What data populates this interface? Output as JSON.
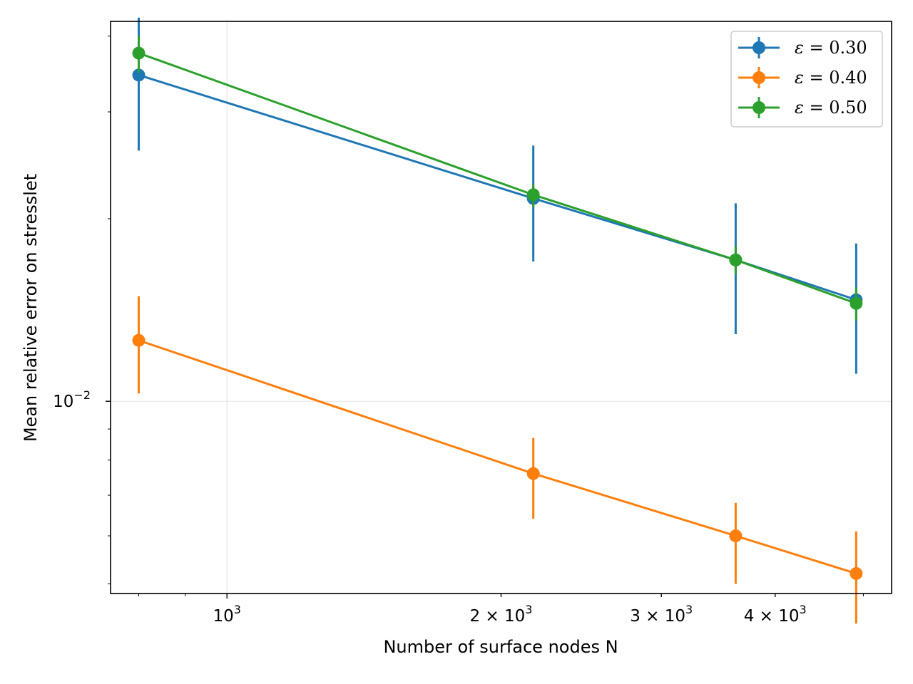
{
  "chart_data": {
    "type": "line",
    "title": "",
    "xlabel": "Number of surface nodes N",
    "ylabel": "Mean relative error on stresslet",
    "xscale": "log",
    "yscale": "log",
    "xlim": [
      745,
      5370
    ],
    "ylim": [
      0.00482,
      0.0423
    ],
    "x": [
      800,
      2170,
      3620,
      4910
    ],
    "xticks": [
      {
        "value": 1000,
        "base": "10",
        "exp": "3"
      },
      {
        "value": 2000,
        "base": "2 × 10",
        "exp": "3"
      },
      {
        "value": 3000,
        "base": "3 × 10",
        "exp": "3"
      },
      {
        "value": 4000,
        "base": "4 × 10",
        "exp": "3"
      }
    ],
    "yticks": [
      {
        "value": 0.01,
        "base": "10",
        "exp": "−2"
      }
    ],
    "grid": true,
    "legend_position": "top-right",
    "series": [
      {
        "name": "ε = 0.30",
        "symbol": "ε",
        "value_label": " = 0.30",
        "color": "#1f77b4",
        "values": [
          0.0345,
          0.0216,
          0.0171,
          0.0147
        ],
        "err_low": [
          0.0259,
          0.017,
          0.0129,
          0.0111
        ],
        "err_high": [
          0.0429,
          0.0264,
          0.0212,
          0.0182
        ]
      },
      {
        "name": "ε = 0.40",
        "symbol": "ε",
        "value_label": " = 0.40",
        "color": "#ff7f0e",
        "values": [
          0.0126,
          0.0076,
          0.006,
          0.0052
        ],
        "err_low": [
          0.0103,
          0.0064,
          0.005,
          0.0043
        ],
        "err_high": [
          0.0149,
          0.0087,
          0.0068,
          0.0061
        ]
      },
      {
        "name": "ε = 0.50",
        "symbol": "ε",
        "value_label": " = 0.50",
        "color": "#2ca02c",
        "values": [
          0.0375,
          0.0219,
          0.0171,
          0.0145
        ],
        "err_low": [
          0.0348,
          0.0209,
          0.0162,
          0.0136
        ],
        "err_high": [
          0.04,
          0.0228,
          0.018,
          0.0154
        ]
      }
    ]
  }
}
